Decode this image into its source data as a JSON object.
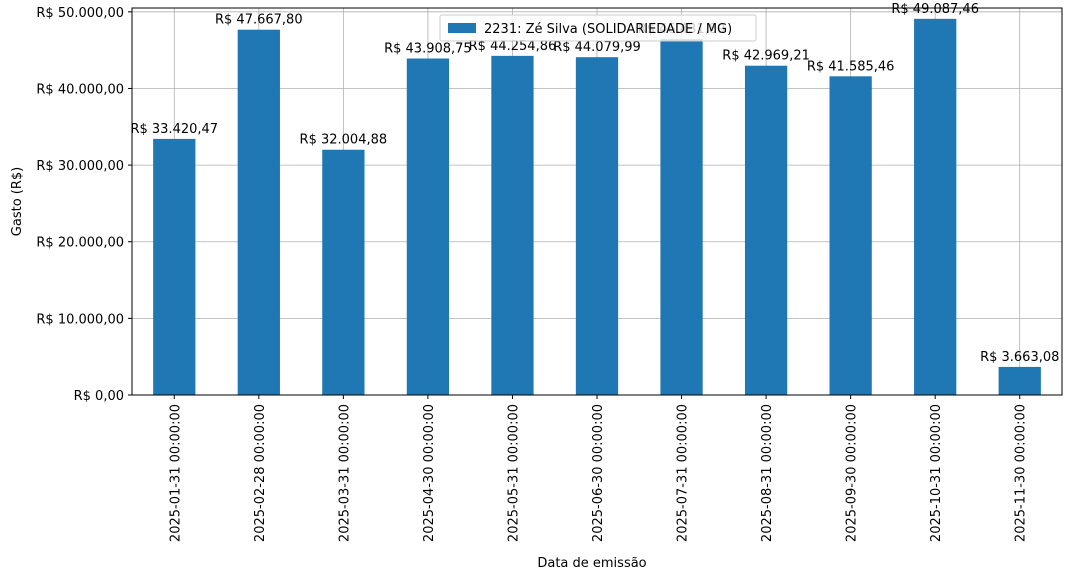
{
  "chart_data": {
    "type": "bar",
    "title": "",
    "xlabel": "Data de emissão",
    "ylabel": "Gasto (R$)",
    "ylim": [
      0,
      50500
    ],
    "yticks": [
      0,
      10000,
      20000,
      30000,
      40000,
      50000
    ],
    "ytick_labels": [
      "R$ 0,00",
      "R$ 10.000,00",
      "R$ 20.000,00",
      "R$ 30.000,00",
      "R$ 40.000,00",
      "R$ 50.000,00"
    ],
    "grid": true,
    "legend_position": "top-center",
    "categories": [
      "2025-01-31 00:00:00",
      "2025-02-28 00:00:00",
      "2025-03-31 00:00:00",
      "2025-04-30 00:00:00",
      "2025-05-31 00:00:00",
      "2025-06-30 00:00:00",
      "2025-07-31 00:00:00",
      "2025-08-31 00:00:00",
      "2025-09-30 00:00:00",
      "2025-10-31 00:00:00",
      "2025-11-30 00:00:00"
    ],
    "series": [
      {
        "name": "2231: Zé Silva (SOLIDARIEDADE / MG)",
        "color": "#1f77b4",
        "values": [
          33420.47,
          47667.8,
          32004.88,
          43908.75,
          44254.86,
          44079.99,
          46431.89,
          42969.21,
          41585.46,
          49087.46,
          3663.08
        ],
        "labels": [
          "R$ 33.420,47",
          "R$ 47.667,80",
          "R$ 32.004,88",
          "R$ 43.908,75",
          "R$ 44.254,86",
          "R$ 44.079,99",
          "R$ 46.431,89",
          "R$ 42.969,21",
          "R$ 41.585,46",
          "R$ 49.087,46",
          "R$ 3.663,08"
        ]
      }
    ]
  }
}
